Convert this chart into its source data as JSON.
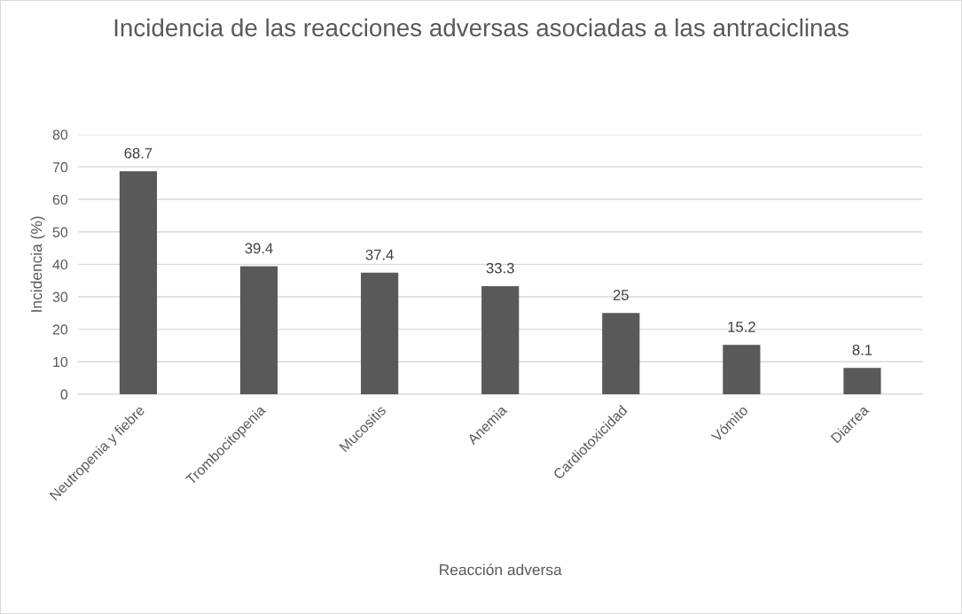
{
  "chart_data": {
    "type": "bar",
    "title": "Incidencia de las reacciones adversas asociadas a las antraciclinas",
    "xlabel": "Reacción adversa",
    "ylabel": "Incidencia (%)",
    "categories": [
      "Neutropenia y fiebre",
      "Trombocitopenia",
      "Mucositis",
      "Anemia",
      "Cardiotoxicidad",
      "Vómito",
      "Diarrea"
    ],
    "values": [
      68.7,
      39.4,
      37.4,
      33.3,
      25,
      15.2,
      8.1
    ],
    "color": "#595959",
    "ylim": [
      0,
      80
    ],
    "yticks": [
      0,
      10,
      20,
      30,
      40,
      50,
      60,
      70,
      80
    ],
    "grid": "y",
    "data_labels": true,
    "legend": false
  }
}
